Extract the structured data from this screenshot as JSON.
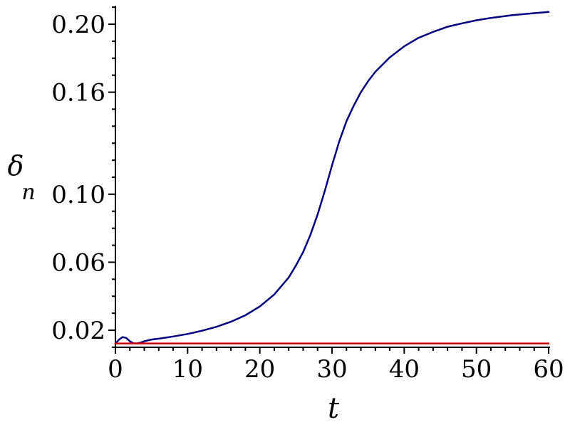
{
  "chart_data": {
    "type": "line",
    "xlabel": "t",
    "ylabel": "δ",
    "ylabel_subscript": "n",
    "xlim": [
      0,
      60
    ],
    "ylim": [
      0.01,
      0.21
    ],
    "grid": false,
    "legend": "none",
    "x_ticks": [
      0,
      10,
      20,
      30,
      40,
      50,
      60
    ],
    "x_tick_labels": [
      "0",
      "10",
      "20",
      "30",
      "40",
      "50",
      "60"
    ],
    "y_ticks": [
      0.02,
      0.06,
      0.1,
      0.16,
      0.2
    ],
    "y_tick_labels": [
      "0.02",
      "0.06",
      "0.10",
      "0.16",
      "0.20"
    ],
    "series": [
      {
        "color": "#000080",
        "x": [
          0,
          0.5,
          1,
          1.5,
          2,
          2.5,
          3,
          3.5,
          4,
          5,
          6,
          8,
          10,
          12,
          14,
          16,
          18,
          20,
          22,
          24,
          25,
          26,
          27,
          28,
          29,
          30,
          31,
          32,
          33,
          34,
          35,
          36,
          38,
          40,
          42,
          44,
          46,
          48,
          50,
          52,
          55,
          58,
          60
        ],
        "y": [
          0.012,
          0.0145,
          0.016,
          0.0155,
          0.0135,
          0.0123,
          0.0122,
          0.0127,
          0.0135,
          0.0145,
          0.015,
          0.0163,
          0.0178,
          0.0197,
          0.022,
          0.025,
          0.0288,
          0.034,
          0.041,
          0.051,
          0.058,
          0.066,
          0.076,
          0.088,
          0.102,
          0.117,
          0.131,
          0.143,
          0.152,
          0.16,
          0.1665,
          0.172,
          0.1805,
          0.187,
          0.192,
          0.1955,
          0.1985,
          0.2005,
          0.2023,
          0.2037,
          0.2053,
          0.2065,
          0.2072
        ]
      },
      {
        "color": "#cc0000",
        "x": [
          0,
          60
        ],
        "y": [
          0.0122,
          0.0122
        ]
      }
    ]
  }
}
